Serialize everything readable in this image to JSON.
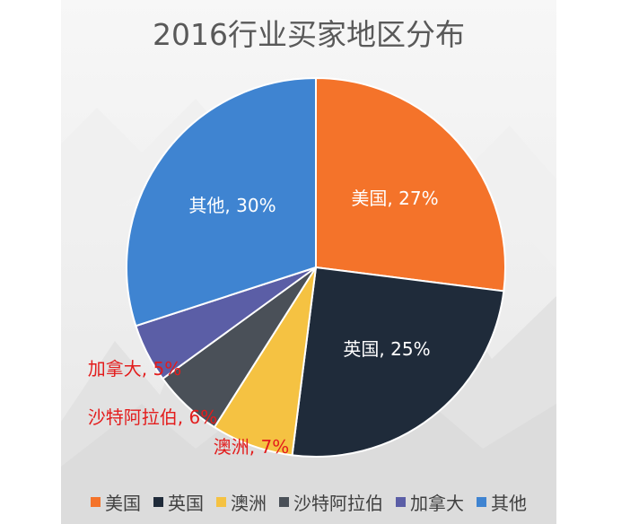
{
  "chart_data": {
    "type": "pie",
    "title": "2016行业买家地区分布",
    "slices": [
      {
        "name": "美国",
        "value": 27,
        "label": "美国, 27%",
        "color": "#F4732A",
        "label_color": "#ffffff"
      },
      {
        "name": "英国",
        "value": 25,
        "label": "英国, 25%",
        "color": "#1F2B3A",
        "label_color": "#ffffff"
      },
      {
        "name": "澳洲",
        "value": 7,
        "label": "澳洲, 7%",
        "color": "#F5C242",
        "label_color": "#E31C1C"
      },
      {
        "name": "沙特阿拉伯",
        "value": 6,
        "label": "沙特阿拉伯, 6%",
        "color": "#4A5058",
        "label_color": "#E31C1C"
      },
      {
        "name": "加拿大",
        "value": 5,
        "label": "加拿大, 5%",
        "color": "#5B5EA6",
        "label_color": "#E31C1C"
      },
      {
        "name": "其他",
        "value": 30,
        "label": "其他, 30%",
        "color": "#3F84D1",
        "label_color": "#ffffff"
      }
    ],
    "legend_position": "bottom"
  }
}
